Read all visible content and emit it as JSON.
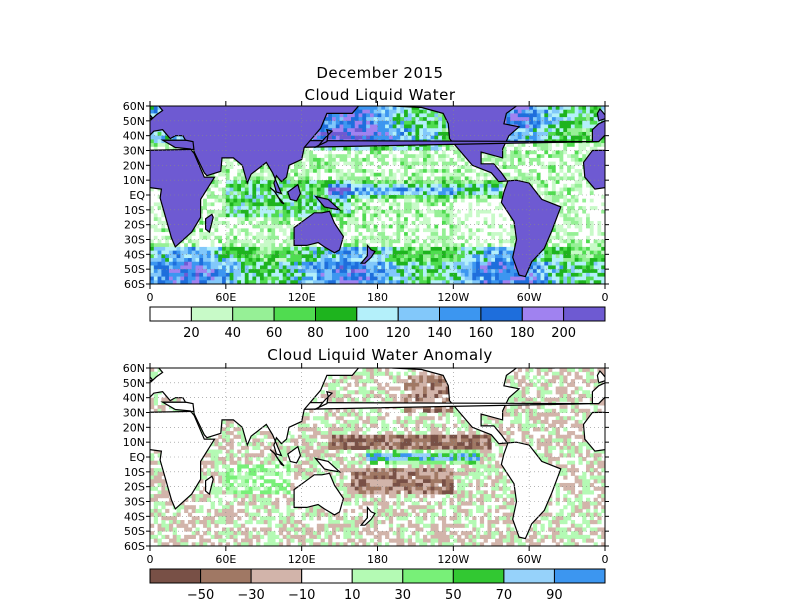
{
  "title_line1": "December 2015",
  "panel1": {
    "title": "Cloud Liquid Water",
    "lat_labels": [
      "60N",
      "50N",
      "40N",
      "30N",
      "20N",
      "10N",
      "EQ",
      "10S",
      "20S",
      "30S",
      "40S",
      "50S",
      "60S"
    ],
    "lon_labels": [
      "0",
      "60E",
      "120E",
      "180",
      "120W",
      "60W",
      "0"
    ],
    "colorbar": {
      "colors": [
        "#ffffff",
        "#c8fac8",
        "#96f096",
        "#50dc50",
        "#1eb41e",
        "#b4f0fa",
        "#82c8fa",
        "#3c96f0",
        "#1e6edc",
        "#a082f0",
        "#6e5ad2"
      ],
      "labels": [
        "20",
        "40",
        "60",
        "80",
        "100",
        "120",
        "140",
        "160",
        "180",
        "200"
      ]
    },
    "land_color": "#6e5ad2"
  },
  "panel2": {
    "title": "Cloud Liquid Water Anomaly",
    "lat_labels": [
      "60N",
      "50N",
      "40N",
      "30N",
      "20N",
      "10N",
      "EQ",
      "10S",
      "20S",
      "30S",
      "40S",
      "50S",
      "60S"
    ],
    "lon_labels": [
      "0",
      "60E",
      "120E",
      "180",
      "120W",
      "60W",
      "0"
    ],
    "colorbar": {
      "colors": [
        "#785046",
        "#a07864",
        "#d2b4aa",
        "#ffffff",
        "#b4fab4",
        "#78f078",
        "#32c832",
        "#96d2fa",
        "#3c96f0"
      ],
      "labels": [
        "-50",
        "-30",
        "-10",
        "10",
        "30",
        "50",
        "70",
        "90"
      ]
    },
    "land_color": "#ffffff"
  }
}
